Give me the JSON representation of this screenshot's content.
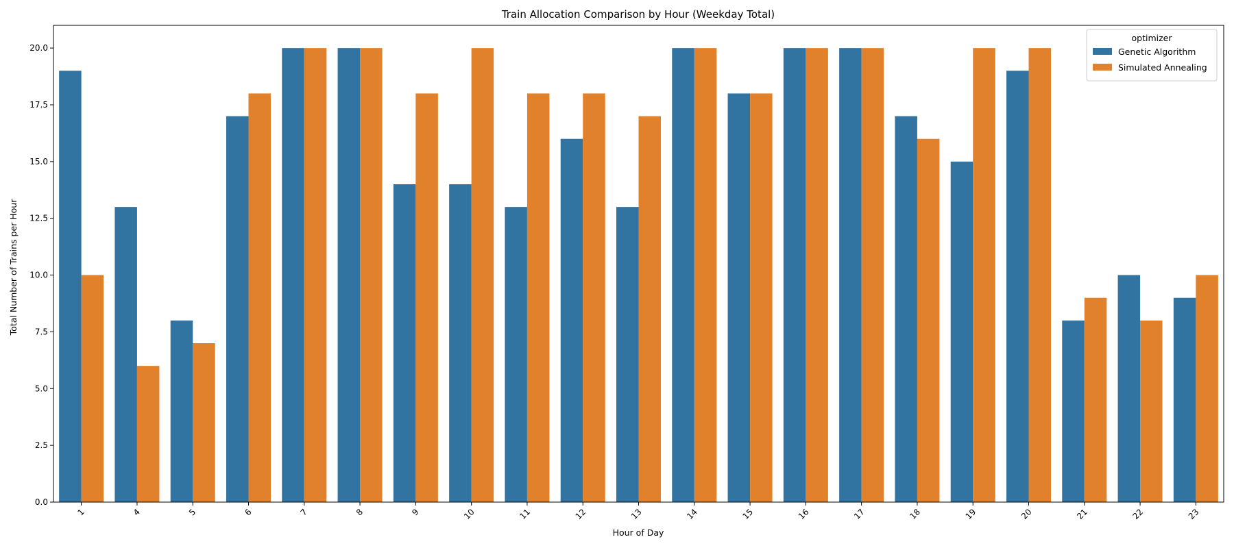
{
  "chart_data": {
    "type": "bar",
    "title": "Train Allocation Comparison by Hour (Weekday Total)",
    "xlabel": "Hour of Day",
    "ylabel": "Total Number of Trains per Hour",
    "categories": [
      "1",
      "4",
      "5",
      "6",
      "7",
      "8",
      "9",
      "10",
      "11",
      "12",
      "13",
      "14",
      "15",
      "16",
      "17",
      "18",
      "19",
      "20",
      "21",
      "22",
      "23"
    ],
    "ylim": [
      0,
      21
    ],
    "yticks": [
      "0.0",
      "2.5",
      "5.0",
      "7.5",
      "10.0",
      "12.5",
      "15.0",
      "17.5",
      "20.0"
    ],
    "series": [
      {
        "name": "Genetic Algorithm",
        "color": "#3274a1",
        "values": [
          19,
          13,
          8,
          17,
          20,
          20,
          14,
          14,
          13,
          16,
          13,
          20,
          18,
          20,
          20,
          17,
          15,
          19,
          8,
          10,
          9
        ]
      },
      {
        "name": "Simulated Annealing",
        "color": "#e1812c",
        "values": [
          10,
          6,
          7,
          18,
          20,
          20,
          18,
          20,
          18,
          18,
          17,
          20,
          18,
          20,
          20,
          16,
          20,
          20,
          9,
          8,
          10
        ]
      }
    ],
    "legend": {
      "title": "optimizer",
      "position": "top-right"
    },
    "grid": false,
    "x_tick_rotation": -45
  }
}
